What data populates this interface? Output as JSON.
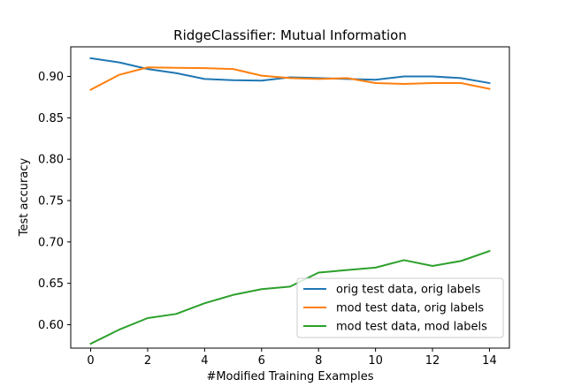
{
  "chart_data": {
    "type": "line",
    "title": "RidgeClassifier: Mutual Information",
    "xlabel": "#Modified Training Examples",
    "ylabel": "Test accuracy",
    "xlim": [
      -0.7,
      14.7
    ],
    "ylim": [
      0.5717,
      0.9358
    ],
    "xticks": [
      0,
      2,
      4,
      6,
      8,
      10,
      12,
      14
    ],
    "xtick_labels": [
      "0",
      "2",
      "4",
      "6",
      "8",
      "10",
      "12",
      "14"
    ],
    "yticks": [
      0.6,
      0.65,
      0.7,
      0.75,
      0.8,
      0.85,
      0.9
    ],
    "ytick_labels": [
      "0.60",
      "0.65",
      "0.70",
      "0.75",
      "0.80",
      "0.85",
      "0.90"
    ],
    "grid": false,
    "legend_position": "bottom-right",
    "x": [
      0,
      1,
      2,
      3,
      4,
      5,
      6,
      7,
      8,
      9,
      10,
      11,
      12,
      13,
      14
    ],
    "series": [
      {
        "name": "orig test data, orig labels",
        "color": "#1f77b4",
        "values": [
          0.922,
          0.917,
          0.909,
          0.904,
          0.897,
          0.8955,
          0.895,
          0.899,
          0.898,
          0.897,
          0.896,
          0.9,
          0.9,
          0.898,
          0.892
        ]
      },
      {
        "name": "mod test data, orig labels",
        "color": "#ff7f0e",
        "values": [
          0.884,
          0.902,
          0.911,
          0.9105,
          0.91,
          0.909,
          0.901,
          0.898,
          0.897,
          0.898,
          0.892,
          0.891,
          0.892,
          0.892,
          0.885
        ]
      },
      {
        "name": "mod test data, mod labels",
        "color": "#2ca02c",
        "values": [
          0.577,
          0.594,
          0.608,
          0.613,
          0.626,
          0.636,
          0.643,
          0.646,
          0.663,
          0.666,
          0.669,
          0.678,
          0.671,
          0.677,
          0.689
        ]
      }
    ]
  }
}
